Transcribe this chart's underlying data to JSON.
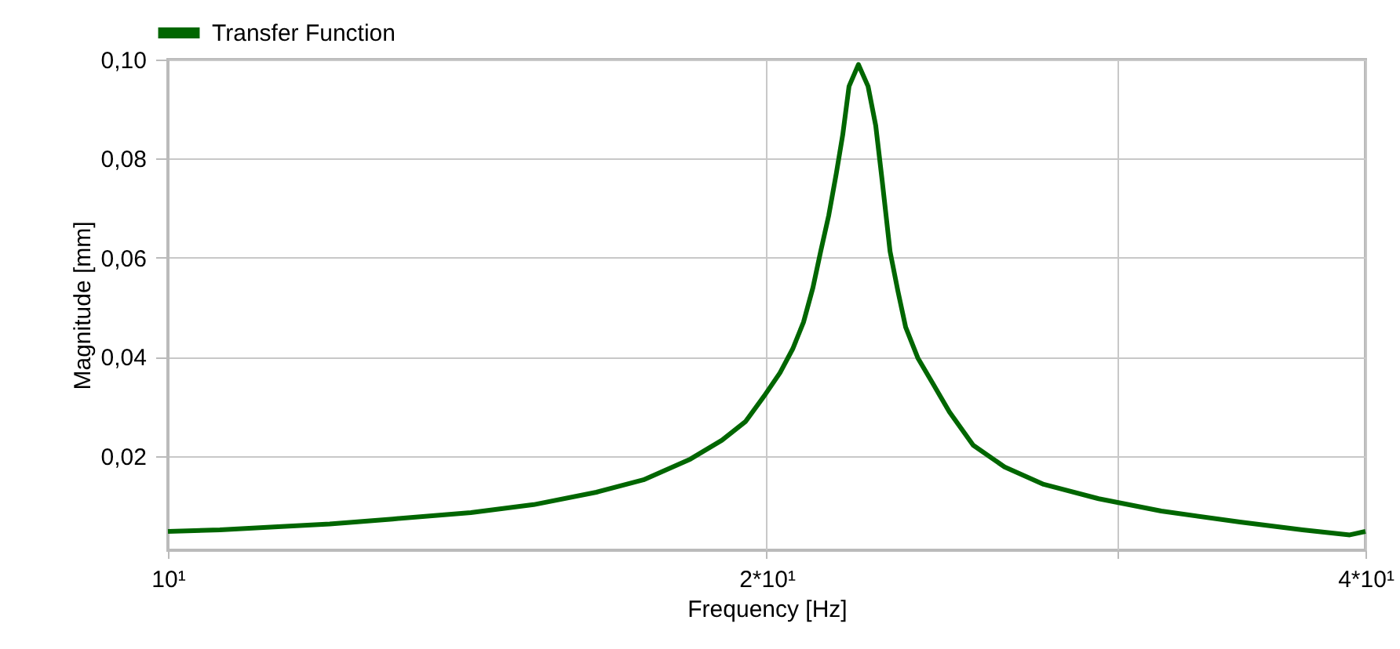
{
  "chart_data": {
    "type": "line",
    "xlabel": "Frequency  [Hz]",
    "ylabel": "Magnitude [mm]",
    "x": [
      10,
      10.62,
      11.31,
      12.06,
      12.97,
      14.2,
      15.27,
      16.42,
      17.34,
      18.31,
      18.99,
      19.52,
      19.94,
      20.31,
      20.61,
      20.87,
      21.1,
      21.29,
      21.49,
      21.68,
      21.84,
      22.0,
      22.24,
      22.49,
      22.69,
      22.86,
      23.07,
      23.28,
      23.49,
      23.83,
      24.27,
      24.71,
      25.4,
      26.34,
      27.56,
      29.37,
      31.58,
      34.59,
      37.19,
      39.28,
      40
    ],
    "series": [
      {
        "name": "Transfer Function",
        "color": "#006600",
        "values": [
          0.0048,
          0.0051,
          0.0057,
          0.0063,
          0.0073,
          0.0086,
          0.0102,
          0.0127,
          0.0152,
          0.0194,
          0.0232,
          0.027,
          0.0321,
          0.0368,
          0.0416,
          0.047,
          0.054,
          0.0613,
          0.0686,
          0.0771,
          0.0848,
          0.0946,
          0.099,
          0.0946,
          0.0867,
          0.0756,
          0.0613,
          0.0533,
          0.046,
          0.0397,
          0.0343,
          0.0289,
          0.0222,
          0.0178,
          0.0143,
          0.0114,
          0.0089,
          0.0067,
          0.0051,
          0.0041,
          0.0048
        ]
      }
    ],
    "log": "x",
    "xlim": [
      10,
      40
    ],
    "xticks": [
      {
        "value": 10,
        "label": "10¹"
      },
      {
        "value": 20,
        "label": "2*10¹"
      },
      {
        "value": 30,
        "label": null
      },
      {
        "value": 40,
        "label": "4*10¹"
      }
    ],
    "ylim": [
      0.001,
      0.1
    ],
    "yticks": [
      {
        "value": 0.02,
        "label": "0,02"
      },
      {
        "value": 0.04,
        "label": "0,04"
      },
      {
        "value": 0.06,
        "label": "0,06"
      },
      {
        "value": 0.08,
        "label": "0,08"
      },
      {
        "value": 0.1,
        "label": "0,10"
      }
    ],
    "grid": true,
    "legend": "top left",
    "line_style": "solid",
    "marker": "none"
  }
}
